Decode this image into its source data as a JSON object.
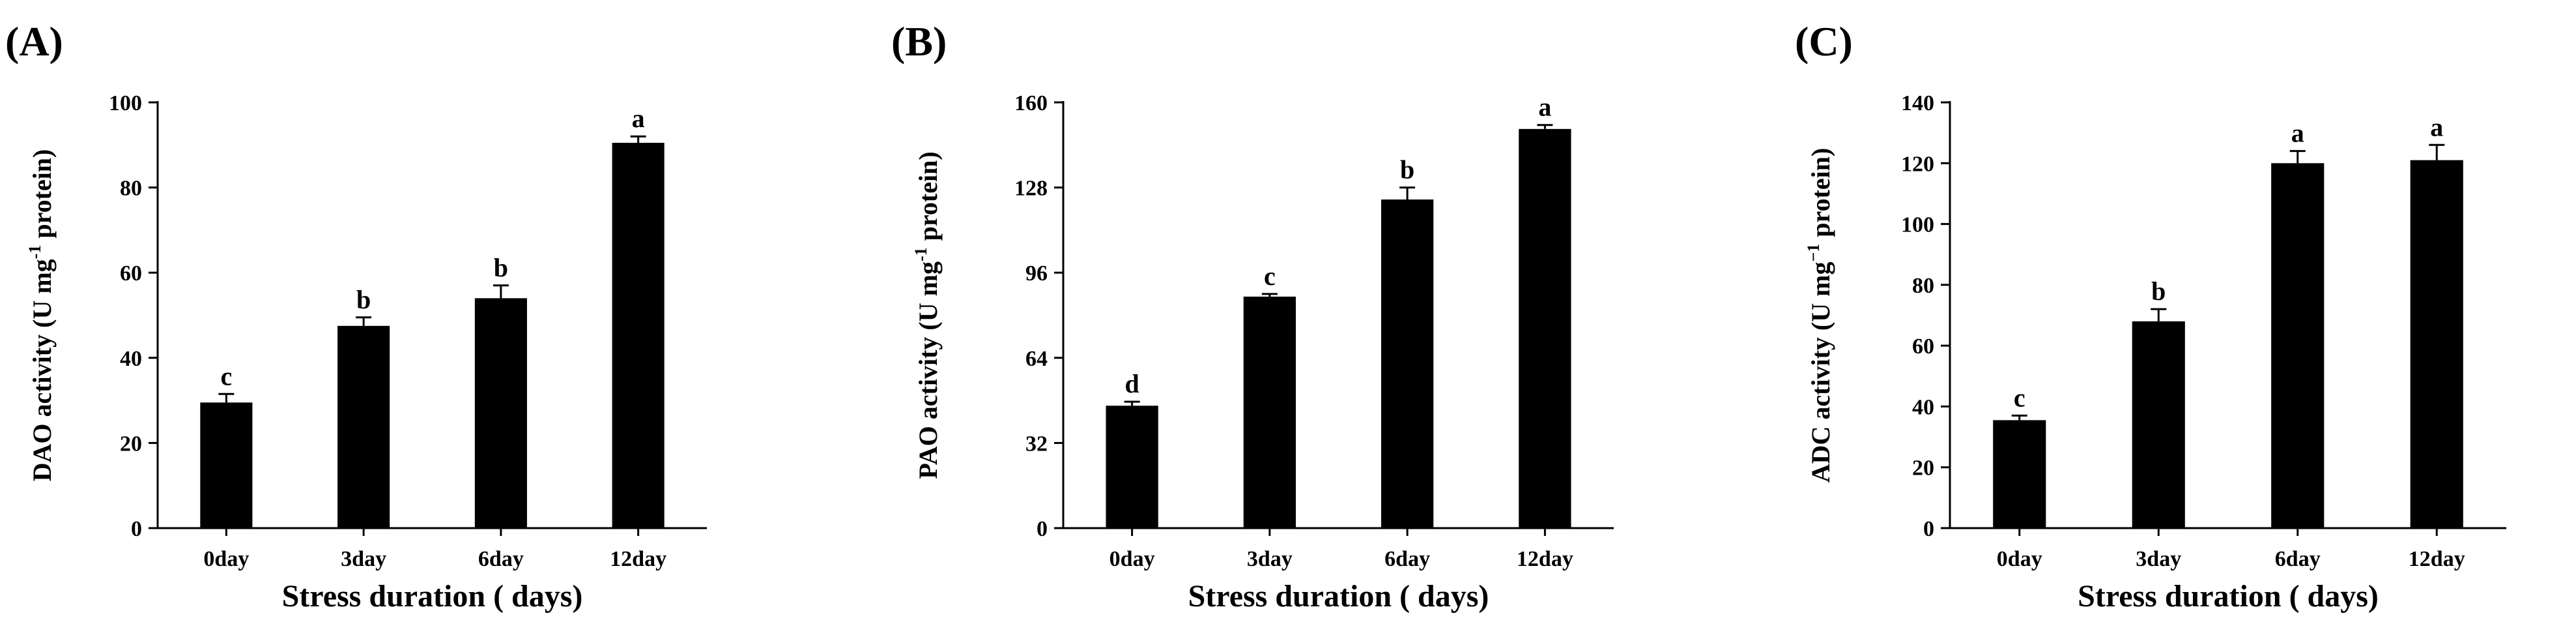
{
  "colors": {
    "bar": "#000000",
    "axis": "#000000",
    "background": "#ffffff"
  },
  "chart_data": [
    {
      "panel_label": "(A)",
      "type": "bar",
      "categories": [
        "0day",
        "3day",
        "6day",
        "12day"
      ],
      "values": [
        29.5,
        47.5,
        54.0,
        90.5
      ],
      "errors": [
        2.0,
        2.0,
        3.0,
        1.5
      ],
      "significance": [
        "c",
        "b",
        "b",
        "a"
      ],
      "xlabel": "Stress duration ( days)",
      "ylabel_pre": "DAO activity (U mg",
      "ylabel_sup": "-1",
      "ylabel_post": " protein)",
      "ylim": [
        0,
        100
      ],
      "yticks": [
        0,
        20,
        40,
        60,
        80,
        100
      ],
      "legend": "none",
      "grid": false
    },
    {
      "panel_label": "(B)",
      "type": "bar",
      "categories": [
        "0day",
        "3day",
        "6day",
        "12day"
      ],
      "values": [
        46.0,
        87.0,
        123.5,
        150.0
      ],
      "errors": [
        1.5,
        1.0,
        4.5,
        1.5
      ],
      "significance": [
        "d",
        "c",
        "b",
        "a"
      ],
      "xlabel": "Stress duration ( days)",
      "ylabel_pre": "PAO activity (U mg",
      "ylabel_sup": "-1",
      "ylabel_post": " protein)",
      "ylim": [
        0,
        160
      ],
      "yticks": [
        0,
        32,
        64,
        96,
        128,
        160
      ],
      "legend": "none",
      "grid": false
    },
    {
      "panel_label": "(C)",
      "type": "bar",
      "categories": [
        "0day",
        "3day",
        "6day",
        "12day"
      ],
      "values": [
        35.5,
        68.0,
        120.0,
        121.0
      ],
      "errors": [
        1.5,
        4.0,
        4.0,
        5.0
      ],
      "significance": [
        "c",
        "b",
        "a",
        "a"
      ],
      "xlabel": "Stress duration ( days)",
      "ylabel_pre": "ADC activity (U mg",
      "ylabel_sup": "−1",
      "ylabel_post": " protein)",
      "ylim": [
        0,
        140
      ],
      "yticks": [
        0,
        20,
        40,
        60,
        80,
        100,
        120,
        140
      ],
      "legend": "none",
      "grid": false
    }
  ]
}
